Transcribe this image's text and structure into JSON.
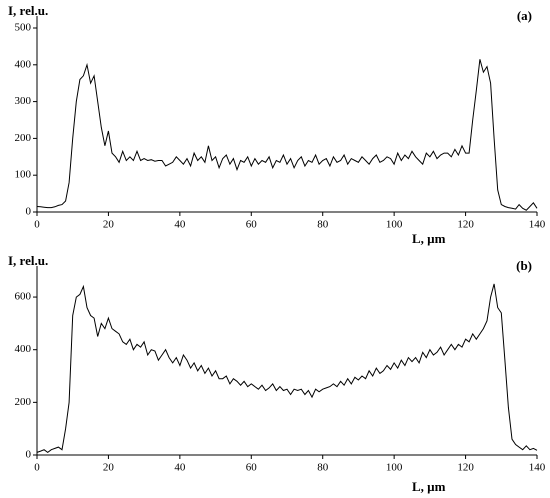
{
  "chart_data": [
    {
      "type": "line",
      "annotation": "(a)",
      "ylabel": "I, rel.u.",
      "xlabel": "L, µm",
      "color": "#000000",
      "x": [
        0,
        1,
        2,
        3,
        4,
        5,
        6,
        7,
        8,
        9,
        10,
        11,
        12,
        13,
        14,
        15,
        16,
        17,
        18,
        19,
        20,
        21,
        22,
        23,
        24,
        25,
        26,
        27,
        28,
        29,
        30,
        31,
        32,
        33,
        34,
        35,
        36,
        37,
        38,
        39,
        40,
        41,
        42,
        43,
        44,
        45,
        46,
        47,
        48,
        49,
        50,
        51,
        52,
        53,
        54,
        55,
        56,
        57,
        58,
        59,
        60,
        61,
        62,
        63,
        64,
        65,
        66,
        67,
        68,
        69,
        70,
        71,
        72,
        73,
        74,
        75,
        76,
        77,
        78,
        79,
        80,
        81,
        82,
        83,
        84,
        85,
        86,
        87,
        88,
        89,
        90,
        91,
        92,
        93,
        94,
        95,
        96,
        97,
        98,
        99,
        100,
        101,
        102,
        103,
        104,
        105,
        106,
        107,
        108,
        109,
        110,
        111,
        112,
        113,
        114,
        115,
        116,
        117,
        118,
        119,
        120,
        121,
        122,
        123,
        124,
        125,
        126,
        127,
        128,
        129,
        130,
        131,
        132,
        133,
        134,
        135,
        136,
        137,
        138,
        139,
        140
      ],
      "values": [
        15,
        14,
        13,
        12,
        12,
        14,
        18,
        20,
        30,
        80,
        200,
        300,
        360,
        370,
        400,
        350,
        370,
        300,
        230,
        180,
        220,
        160,
        150,
        135,
        165,
        140,
        150,
        140,
        165,
        140,
        145,
        140,
        142,
        138,
        140,
        140,
        125,
        130,
        135,
        150,
        140,
        130,
        145,
        125,
        160,
        140,
        150,
        135,
        180,
        140,
        150,
        120,
        145,
        155,
        130,
        145,
        115,
        140,
        135,
        150,
        125,
        145,
        130,
        140,
        135,
        150,
        120,
        140,
        135,
        155,
        130,
        145,
        120,
        140,
        150,
        125,
        140,
        135,
        155,
        130,
        140,
        145,
        125,
        150,
        135,
        140,
        155,
        130,
        145,
        140,
        135,
        150,
        140,
        130,
        145,
        155,
        135,
        140,
        150,
        145,
        130,
        160,
        140,
        155,
        145,
        165,
        150,
        140,
        130,
        160,
        150,
        165,
        145,
        155,
        160,
        160,
        150,
        170,
        155,
        180,
        160,
        160,
        250,
        330,
        415,
        380,
        395,
        350,
        200,
        60,
        20,
        15,
        12,
        10,
        8,
        20,
        10,
        5,
        15,
        25,
        10
      ],
      "xlim": [
        0,
        140
      ],
      "xticks": [
        0,
        20,
        40,
        60,
        80,
        100,
        120,
        140
      ],
      "ylim": [
        0,
        500
      ],
      "yticks": [
        0,
        100,
        200,
        300,
        400,
        500
      ]
    },
    {
      "type": "line",
      "annotation": "(b)",
      "ylabel": "I, rel.u.",
      "xlabel": "L, µm",
      "color": "#000000",
      "x": [
        0,
        1,
        2,
        3,
        4,
        5,
        6,
        7,
        8,
        9,
        10,
        11,
        12,
        13,
        14,
        15,
        16,
        17,
        18,
        19,
        20,
        21,
        22,
        23,
        24,
        25,
        26,
        27,
        28,
        29,
        30,
        31,
        32,
        33,
        34,
        35,
        36,
        37,
        38,
        39,
        40,
        41,
        42,
        43,
        44,
        45,
        46,
        47,
        48,
        49,
        50,
        51,
        52,
        53,
        54,
        55,
        56,
        57,
        58,
        59,
        60,
        61,
        62,
        63,
        64,
        65,
        66,
        67,
        68,
        69,
        70,
        71,
        72,
        73,
        74,
        75,
        76,
        77,
        78,
        79,
        80,
        81,
        82,
        83,
        84,
        85,
        86,
        87,
        88,
        89,
        90,
        91,
        92,
        93,
        94,
        95,
        96,
        97,
        98,
        99,
        100,
        101,
        102,
        103,
        104,
        105,
        106,
        107,
        108,
        109,
        110,
        111,
        112,
        113,
        114,
        115,
        116,
        117,
        118,
        119,
        120,
        121,
        122,
        123,
        124,
        125,
        126,
        127,
        128,
        129,
        130,
        131,
        132,
        133,
        134,
        135,
        136,
        137,
        138,
        139,
        140
      ],
      "values": [
        10,
        15,
        20,
        10,
        20,
        25,
        30,
        20,
        100,
        200,
        530,
        600,
        610,
        640,
        560,
        530,
        520,
        450,
        500,
        480,
        520,
        480,
        470,
        460,
        430,
        420,
        440,
        400,
        420,
        410,
        430,
        380,
        400,
        395,
        360,
        380,
        400,
        370,
        350,
        370,
        340,
        380,
        360,
        330,
        350,
        320,
        340,
        310,
        330,
        300,
        320,
        290,
        290,
        300,
        270,
        290,
        280,
        265,
        280,
        260,
        270,
        260,
        250,
        265,
        245,
        255,
        270,
        245,
        260,
        245,
        250,
        230,
        250,
        245,
        250,
        230,
        245,
        220,
        250,
        240,
        250,
        255,
        260,
        270,
        260,
        280,
        265,
        290,
        270,
        295,
        285,
        300,
        290,
        320,
        300,
        330,
        310,
        320,
        340,
        325,
        350,
        330,
        360,
        340,
        370,
        355,
        370,
        350,
        390,
        370,
        400,
        380,
        390,
        410,
        380,
        400,
        420,
        400,
        420,
        410,
        440,
        430,
        460,
        440,
        460,
        480,
        510,
        600,
        650,
        560,
        540,
        360,
        180,
        60,
        40,
        30,
        20,
        35,
        20,
        25,
        18
      ],
      "xlim": [
        0,
        140
      ],
      "xticks": [
        0,
        20,
        40,
        60,
        80,
        100,
        120,
        140
      ],
      "ylim": [
        0,
        680
      ],
      "yticks": [
        0,
        200,
        400,
        600
      ]
    }
  ]
}
